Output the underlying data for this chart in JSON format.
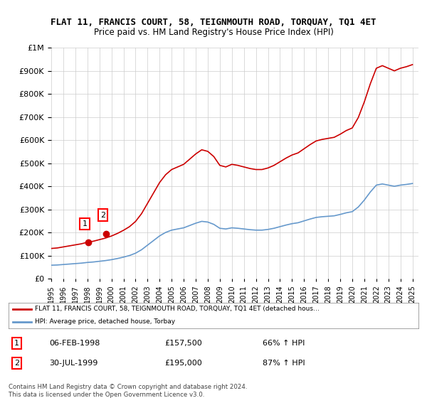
{
  "title": "FLAT 11, FRANCIS COURT, 58, TEIGNMOUTH ROAD, TORQUAY, TQ1 4ET",
  "subtitle": "Price paid vs. HM Land Registry's House Price Index (HPI)",
  "legend_line1": "FLAT 11, FRANCIS COURT, 58, TEIGNMOUTH ROAD, TORQUAY, TQ1 4ET (detached hous…",
  "legend_line2": "HPI: Average price, detached house, Torbay",
  "sale1_label": "1",
  "sale1_date": "06-FEB-1998",
  "sale1_price": "£157,500",
  "sale1_hpi": "66% ↑ HPI",
  "sale2_label": "2",
  "sale2_date": "30-JUL-1999",
  "sale2_price": "£195,000",
  "sale2_hpi": "87% ↑ HPI",
  "footnote": "Contains HM Land Registry data © Crown copyright and database right 2024.\nThis data is licensed under the Open Government Licence v3.0.",
  "red_color": "#cc0000",
  "blue_color": "#6699cc",
  "sale_dot_color": "#cc0000",
  "bg_color": "#ffffff",
  "grid_color": "#cccccc",
  "ylim": [
    0,
    1000000
  ],
  "yticks": [
    0,
    100000,
    200000,
    300000,
    400000,
    500000,
    600000,
    700000,
    800000,
    900000,
    1000000
  ],
  "xlim_start": 1995.0,
  "xlim_end": 2025.5,
  "sale1_x": 1998.09,
  "sale1_y": 157500,
  "sale2_x": 1999.58,
  "sale2_y": 195000
}
